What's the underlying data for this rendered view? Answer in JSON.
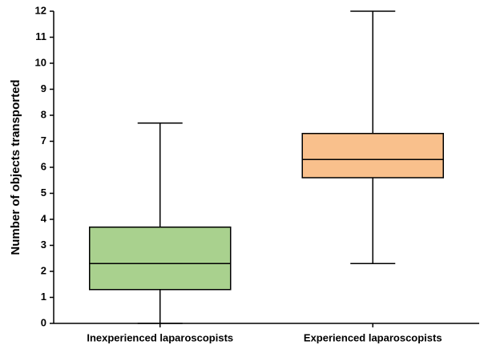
{
  "chart_data": {
    "type": "box",
    "y_label": "Number of objects transported",
    "categories": [
      "Inexperienced laparoscopists",
      "Experienced laparoscopists"
    ],
    "boxes": [
      {
        "min": 0,
        "q1": 1.3,
        "median": 2.3,
        "q3": 3.7,
        "max": 7.7,
        "color": "#a9d18e"
      },
      {
        "min": 2.3,
        "q1": 5.6,
        "median": 6.3,
        "q3": 7.3,
        "max": 12,
        "color": "#f9c08c"
      }
    ],
    "ylim": [
      0,
      12
    ],
    "yticks": [
      0,
      1,
      2,
      3,
      4,
      5,
      6,
      7,
      8,
      9,
      10,
      11,
      12
    ],
    "grid": false
  }
}
